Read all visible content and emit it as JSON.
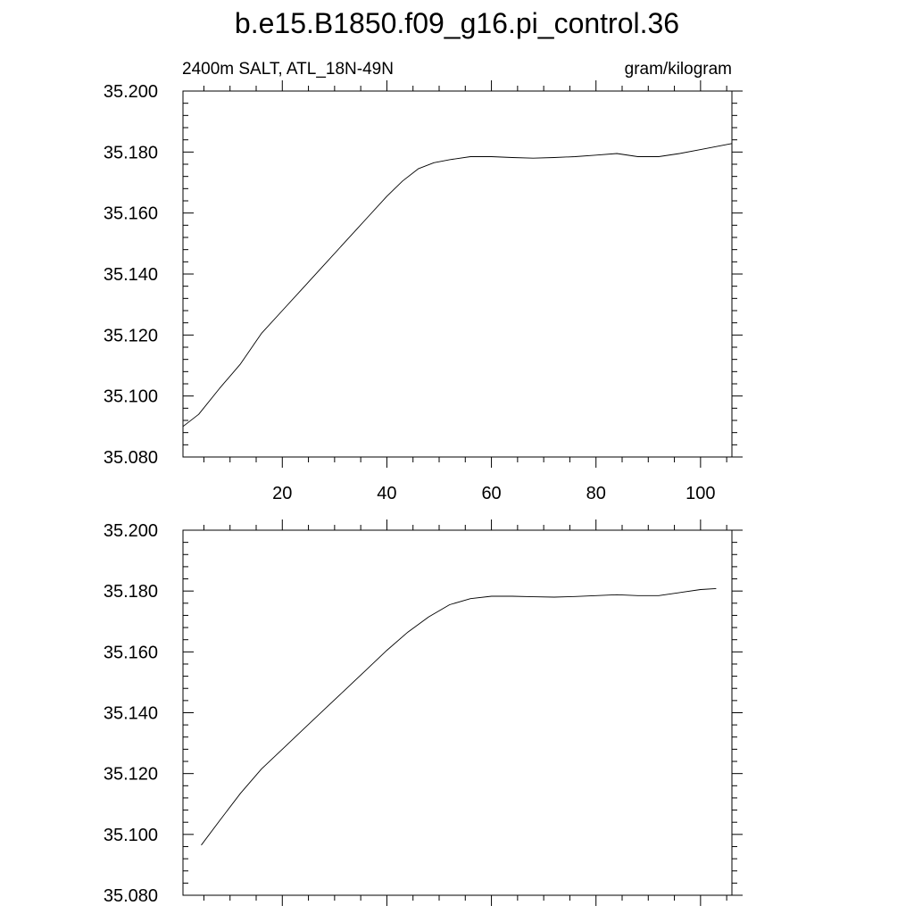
{
  "title": "b.e15.B1850.f09_g16.pi_control.36",
  "chart_data": [
    {
      "type": "line",
      "left_label": "2400m SALT, ATL_18N-49N",
      "right_label": "gram/kilogram",
      "xlim": [
        1,
        106
      ],
      "ylim": [
        35.08,
        35.2
      ],
      "x_ticks": [
        20,
        40,
        60,
        80,
        100
      ],
      "x_tick_labels": [
        "20",
        "40",
        "60",
        "80",
        "100"
      ],
      "y_ticks": [
        35.08,
        35.1,
        35.12,
        35.14,
        35.16,
        35.18,
        35.2
      ],
      "y_tick_labels": [
        "35.080",
        "35.100",
        "35.120",
        "35.140",
        "35.160",
        "35.180",
        "35.200"
      ],
      "series": [
        {
          "x": [
            1,
            4,
            8,
            12,
            14,
            16,
            20,
            24,
            28,
            32,
            36,
            40,
            43,
            46,
            49,
            52,
            56,
            60,
            64,
            68,
            72,
            76,
            80,
            84,
            88,
            92,
            96,
            100,
            106
          ],
          "y": [
            35.09,
            35.094,
            35.1025,
            35.1105,
            35.1155,
            35.1205,
            35.128,
            35.1355,
            35.143,
            35.1505,
            35.158,
            35.1655,
            35.1705,
            35.1745,
            35.1765,
            35.1775,
            35.1785,
            35.1785,
            35.1782,
            35.178,
            35.1782,
            35.1785,
            35.179,
            35.1795,
            35.1785,
            35.1785,
            35.1795,
            35.1808,
            35.1828
          ]
        }
      ]
    },
    {
      "type": "line",
      "xlim": [
        1,
        106
      ],
      "ylim": [
        35.08,
        35.2
      ],
      "x_ticks": [
        20,
        40,
        60,
        80,
        100
      ],
      "y_ticks": [
        35.08,
        35.1,
        35.12,
        35.14,
        35.16,
        35.18,
        35.2
      ],
      "y_tick_labels": [
        "35.080",
        "35.100",
        "35.120",
        "35.140",
        "35.160",
        "35.180",
        "35.200"
      ],
      "series": [
        {
          "x": [
            4.5,
            8,
            12,
            16,
            20,
            24,
            28,
            32,
            36,
            40,
            44,
            48,
            52,
            56,
            60,
            64,
            68,
            72,
            76,
            80,
            84,
            88,
            92,
            96,
            100,
            103
          ],
          "y": [
            35.0965,
            35.1045,
            35.1135,
            35.1215,
            35.128,
            35.1345,
            35.141,
            35.1475,
            35.154,
            35.1605,
            35.1665,
            35.1715,
            35.1755,
            35.1775,
            35.1783,
            35.1783,
            35.1781,
            35.178,
            35.1782,
            35.1785,
            35.1788,
            35.1785,
            35.1785,
            35.1795,
            35.1805,
            35.1808
          ]
        }
      ]
    }
  ]
}
